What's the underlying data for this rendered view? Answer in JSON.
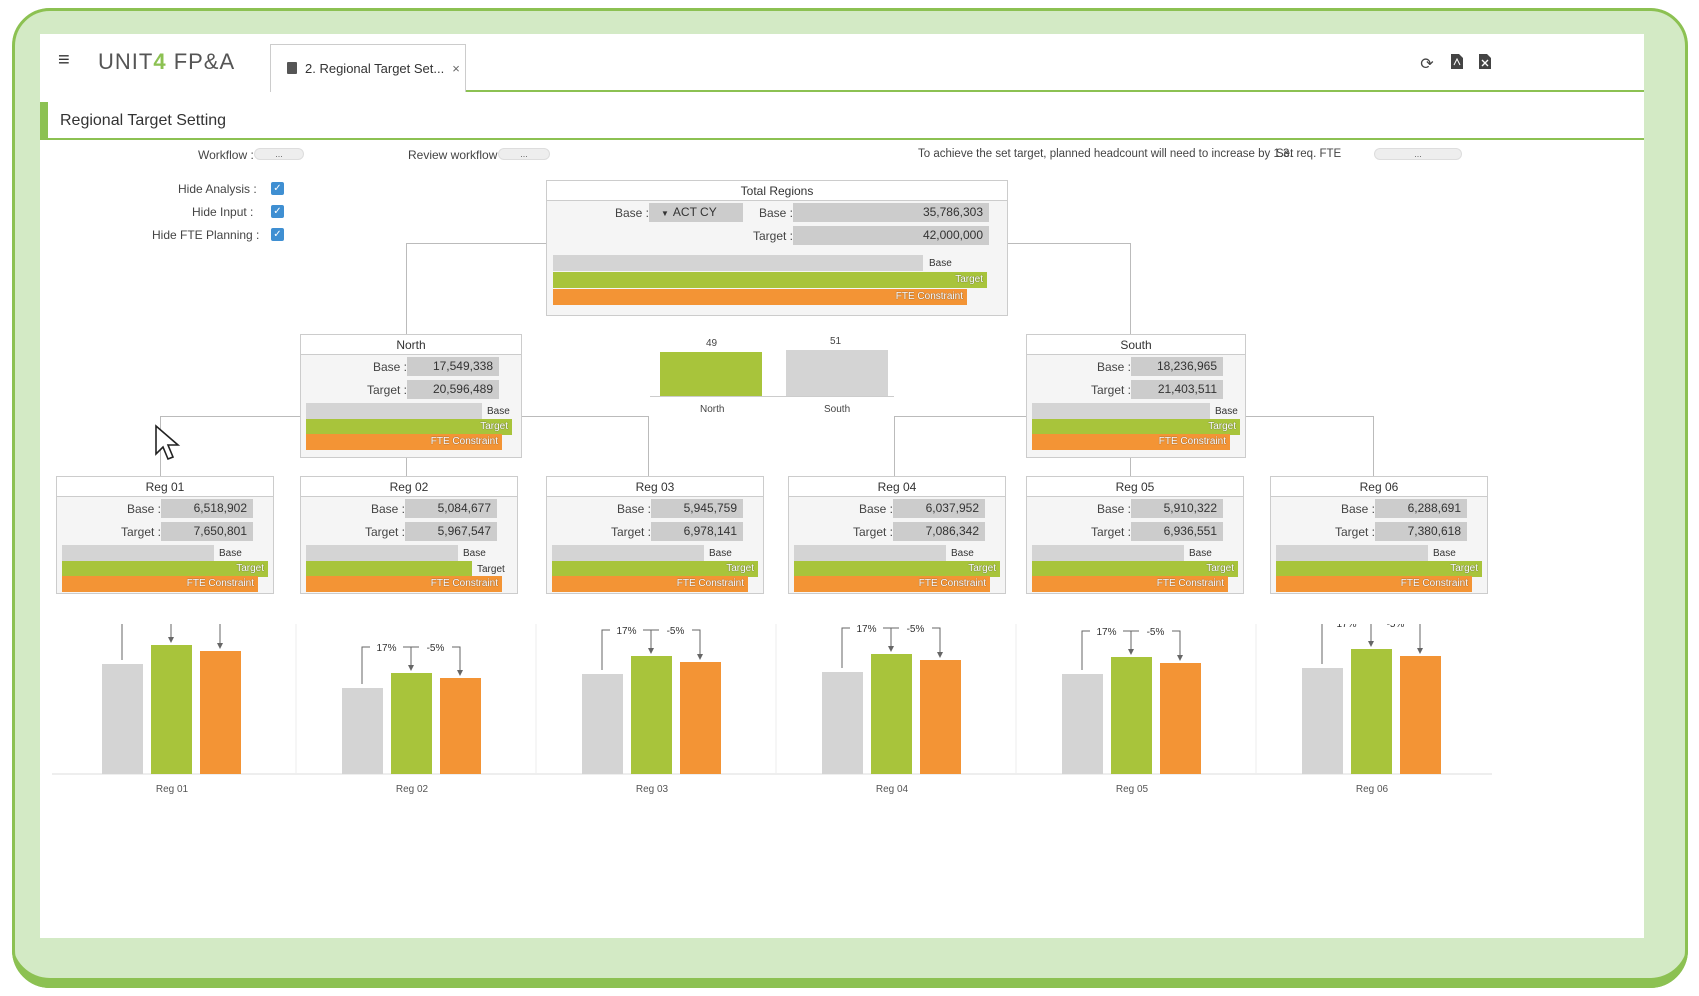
{
  "app": {
    "logo": "UNIT4 FP&A",
    "logo_prefix": "UNIT",
    "logo_four": "4",
    "logo_suffix": " FP&A"
  },
  "tab": {
    "label": "2. Regional Target Set...",
    "close": "×"
  },
  "toolbar": {
    "refresh_icon": "refresh-icon",
    "pdf_icon": "pdf-icon",
    "excel_icon": "excel-icon"
  },
  "page": {
    "title": "Regional Target Setting"
  },
  "controls": {
    "workflow_label": "Workflow :",
    "workflow_btn": "...",
    "review_label": "Review workflow",
    "review_btn": "...",
    "headcount_msg": "To achieve the set target, planned headcount will need to increase by 1.3.",
    "set_fte_label": "Set req. FTE",
    "set_fte_btn": "...",
    "hide_analysis": "Hide Analysis :",
    "hide_input": "Hide Input :",
    "hide_fte": "Hide FTE Planning :"
  },
  "legend": {
    "base": "Base",
    "target": "Target",
    "fte": "FTE Constraint"
  },
  "total": {
    "title": "Total Regions",
    "base_label": "Base :",
    "base_select": "ACT CY",
    "base_value_label": "Base :",
    "base": "35,786,303",
    "target_label": "Target :",
    "target": "42,000,000"
  },
  "regions": [
    {
      "title": "North",
      "base_label": "Base :",
      "base": "17,549,338",
      "target_label": "Target :",
      "target": "20,596,489"
    },
    {
      "title": "South",
      "base_label": "Base :",
      "base": "18,236,965",
      "target_label": "Target :",
      "target": "21,403,511"
    }
  ],
  "mini_chart": {
    "bars": [
      {
        "label": "North",
        "value": "49"
      },
      {
        "label": "South",
        "value": "51"
      }
    ]
  },
  "subregions": [
    {
      "title": "Reg 01",
      "base_label": "Base :",
      "base": "6,518,902",
      "target_label": "Target :",
      "target": "7,650,801"
    },
    {
      "title": "Reg 02",
      "base_label": "Base :",
      "base": "5,084,677",
      "target_label": "Target :",
      "target": "5,967,547"
    },
    {
      "title": "Reg 03",
      "base_label": "Base :",
      "base": "5,945,759",
      "target_label": "Target :",
      "target": "6,978,141"
    },
    {
      "title": "Reg 04",
      "base_label": "Base :",
      "base": "6,037,952",
      "target_label": "Target :",
      "target": "7,086,342"
    },
    {
      "title": "Reg 05",
      "base_label": "Base :",
      "base": "5,910,322",
      "target_label": "Target :",
      "target": "6,936,551"
    },
    {
      "title": "Reg 06",
      "base_label": "Base :",
      "base": "6,288,691",
      "target_label": "Target :",
      "target": "7,380,618"
    }
  ],
  "colors": {
    "accent": "#8cc152",
    "target": "#a8c43b",
    "fte": "#f39435",
    "base": "#d4d4d4"
  },
  "chart_data": {
    "type": "bar",
    "categories": [
      "Reg 01",
      "Reg 02",
      "Reg 03",
      "Reg 04",
      "Reg 05",
      "Reg 06"
    ],
    "series": [
      {
        "name": "Base",
        "values": [
          6518902,
          5084677,
          5945759,
          6037952,
          5910322,
          6288691
        ]
      },
      {
        "name": "Target",
        "values": [
          7650801,
          5967547,
          6978141,
          7086342,
          6936551,
          7380618
        ]
      },
      {
        "name": "FTE Constraint",
        "values": [
          7268261,
          5669170,
          6629234,
          6732025,
          6589723,
          7011587
        ]
      }
    ],
    "annotations": {
      "base_to_target": "17%",
      "target_to_fte": "-5%"
    },
    "ylim": [
      0,
      8000000
    ]
  }
}
